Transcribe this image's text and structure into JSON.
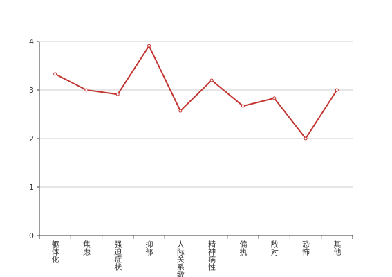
{
  "chart_data": {
    "type": "line",
    "categories": [
      "躯体化",
      "焦虑",
      "强迫症状",
      "抑郁",
      "人际关系敏感",
      "精神病性",
      "偏执",
      "敌对",
      "恐怖",
      "其他"
    ],
    "series": [
      {
        "color": "#c23531",
        "values": [
          3.33,
          3.0,
          2.91,
          3.91,
          2.57,
          3.2,
          2.67,
          2.83,
          2.0,
          3.0
        ]
      }
    ],
    "ylim": [
      0,
      4
    ],
    "yticks": [
      0,
      1,
      2,
      3,
      4
    ],
    "grid": true
  }
}
